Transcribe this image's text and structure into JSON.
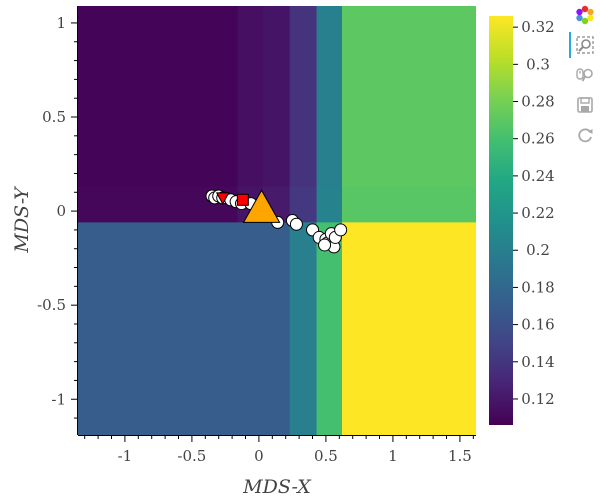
{
  "chart_data": {
    "type": "heatmap",
    "title": "",
    "xlabel": "MDS-X",
    "ylabel": "MDS-Y",
    "xlim": [
      -1.35,
      1.62
    ],
    "ylim": [
      -1.19,
      1.09
    ],
    "x_ticks": [
      -1,
      -0.5,
      0,
      0.5,
      1,
      1.5
    ],
    "x_tick_labels": [
      "-1",
      "-0.5",
      "0",
      "0.5",
      "1",
      "1.5"
    ],
    "y_ticks": [
      -1,
      -0.5,
      0,
      0.5,
      1
    ],
    "y_tick_labels": [
      "-1",
      "-0.5",
      "0",
      "0.5",
      "1"
    ],
    "grid": false,
    "colormap": "viridis",
    "colorbar": {
      "min": 0.106,
      "max": 0.326,
      "ticks": [
        0.12,
        0.14,
        0.16,
        0.18,
        0.2,
        0.22,
        0.24,
        0.26,
        0.28,
        0.3,
        0.32
      ],
      "tick_labels": [
        "0.12",
        "0.14",
        "0.16",
        "0.18",
        "0.2",
        "0.22",
        "0.24",
        "0.26",
        "0.28",
        "0.3",
        "0.32"
      ]
    },
    "cells": [
      {
        "x0": -1.35,
        "x1": -0.16,
        "y0": 0.13,
        "y1": 1.09,
        "value": 0.108
      },
      {
        "x0": -0.16,
        "x1": 0.03,
        "y0": 0.13,
        "y1": 1.09,
        "value": 0.115
      },
      {
        "x0": 0.03,
        "x1": 0.23,
        "y0": 0.13,
        "y1": 1.09,
        "value": 0.118
      },
      {
        "x0": 0.23,
        "x1": 0.43,
        "y0": 0.13,
        "y1": 1.09,
        "value": 0.138
      },
      {
        "x0": 0.43,
        "x1": 0.62,
        "y0": 0.13,
        "y1": 1.09,
        "value": 0.2
      },
      {
        "x0": 0.62,
        "x1": 1.62,
        "y0": 0.13,
        "y1": 1.09,
        "value": 0.27
      },
      {
        "x0": -1.35,
        "x1": -0.16,
        "y0": -0.06,
        "y1": 0.13,
        "value": 0.11
      },
      {
        "x0": -0.16,
        "x1": 0.03,
        "y0": -0.06,
        "y1": 0.13,
        "value": 0.118
      },
      {
        "x0": 0.03,
        "x1": 0.23,
        "y0": -0.06,
        "y1": 0.13,
        "value": 0.122
      },
      {
        "x0": 0.23,
        "x1": 0.43,
        "y0": -0.06,
        "y1": 0.13,
        "value": 0.142
      },
      {
        "x0": 0.43,
        "x1": 0.62,
        "y0": -0.06,
        "y1": 0.13,
        "value": 0.203
      },
      {
        "x0": 0.62,
        "x1": 1.62,
        "y0": -0.06,
        "y1": 0.13,
        "value": 0.268
      },
      {
        "x0": -1.35,
        "x1": 0.23,
        "y0": -1.19,
        "y1": -0.06,
        "value": 0.17
      },
      {
        "x0": 0.23,
        "x1": 0.43,
        "y0": -1.19,
        "y1": -0.06,
        "value": 0.2
      },
      {
        "x0": 0.43,
        "x1": 0.62,
        "y0": -1.19,
        "y1": -0.06,
        "value": 0.26
      },
      {
        "x0": 0.62,
        "x1": 1.62,
        "y0": -1.19,
        "y1": -0.06,
        "value": 0.326
      }
    ],
    "circle_points": [
      {
        "x": -0.35,
        "y": 0.08
      },
      {
        "x": -0.33,
        "y": 0.07
      },
      {
        "x": -0.3,
        "y": 0.08
      },
      {
        "x": -0.27,
        "y": 0.07
      },
      {
        "x": -0.21,
        "y": 0.06
      },
      {
        "x": -0.17,
        "y": 0.05
      },
      {
        "x": -0.13,
        "y": 0.04
      },
      {
        "x": -0.06,
        "y": 0.04
      },
      {
        "x": 0.14,
        "y": -0.06
      },
      {
        "x": 0.25,
        "y": -0.05
      },
      {
        "x": 0.28,
        "y": -0.07
      },
      {
        "x": 0.4,
        "y": -0.1
      },
      {
        "x": 0.45,
        "y": -0.14
      },
      {
        "x": 0.5,
        "y": -0.15
      },
      {
        "x": 0.51,
        "y": -0.17
      },
      {
        "x": 0.54,
        "y": -0.12
      },
      {
        "x": 0.56,
        "y": -0.19
      },
      {
        "x": 0.57,
        "y": -0.14
      },
      {
        "x": 0.61,
        "y": -0.1
      },
      {
        "x": 0.49,
        "y": -0.18
      }
    ],
    "marker_points": [
      {
        "shape": "inverted-triangle",
        "x": -0.27,
        "y": 0.07,
        "color": "#ff0000"
      },
      {
        "shape": "square",
        "x": -0.12,
        "y": 0.06,
        "color": "#ff0000"
      },
      {
        "shape": "triangle",
        "x": 0.02,
        "y": 0.02,
        "color": "#ffa500"
      }
    ]
  },
  "toolbar": {
    "items": [
      {
        "icon": "bokeh-logo-icon",
        "active": false
      },
      {
        "icon": "box-zoom-icon",
        "active": true
      },
      {
        "icon": "wheel-zoom-icon",
        "active": false
      },
      {
        "icon": "save-icon",
        "active": false
      },
      {
        "icon": "reset-icon",
        "active": false
      }
    ]
  }
}
